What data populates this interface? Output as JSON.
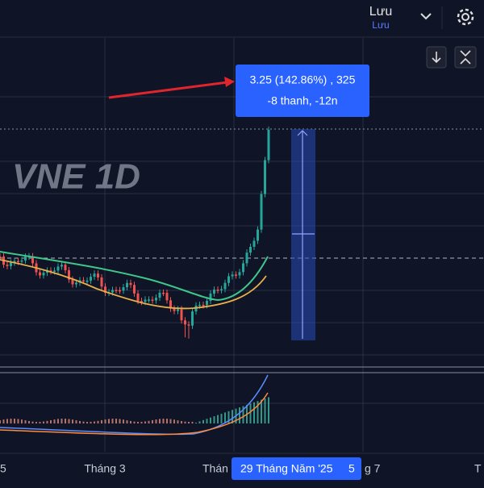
{
  "header": {
    "save_label": "Lưu",
    "save_sublabel": "Lưu"
  },
  "chart": {
    "watermark": "VNE 1D",
    "measure": {
      "line1": "3.25 (142.86%) , 325",
      "line2": "-8 thanh, -12n"
    },
    "x_axis": {
      "labels": [
        "5",
        "Tháng 3",
        "Thán",
        "g 7",
        "T"
      ],
      "cursor_date": "29 Tháng Năm '25",
      "cursor_extra": "5"
    }
  }
}
